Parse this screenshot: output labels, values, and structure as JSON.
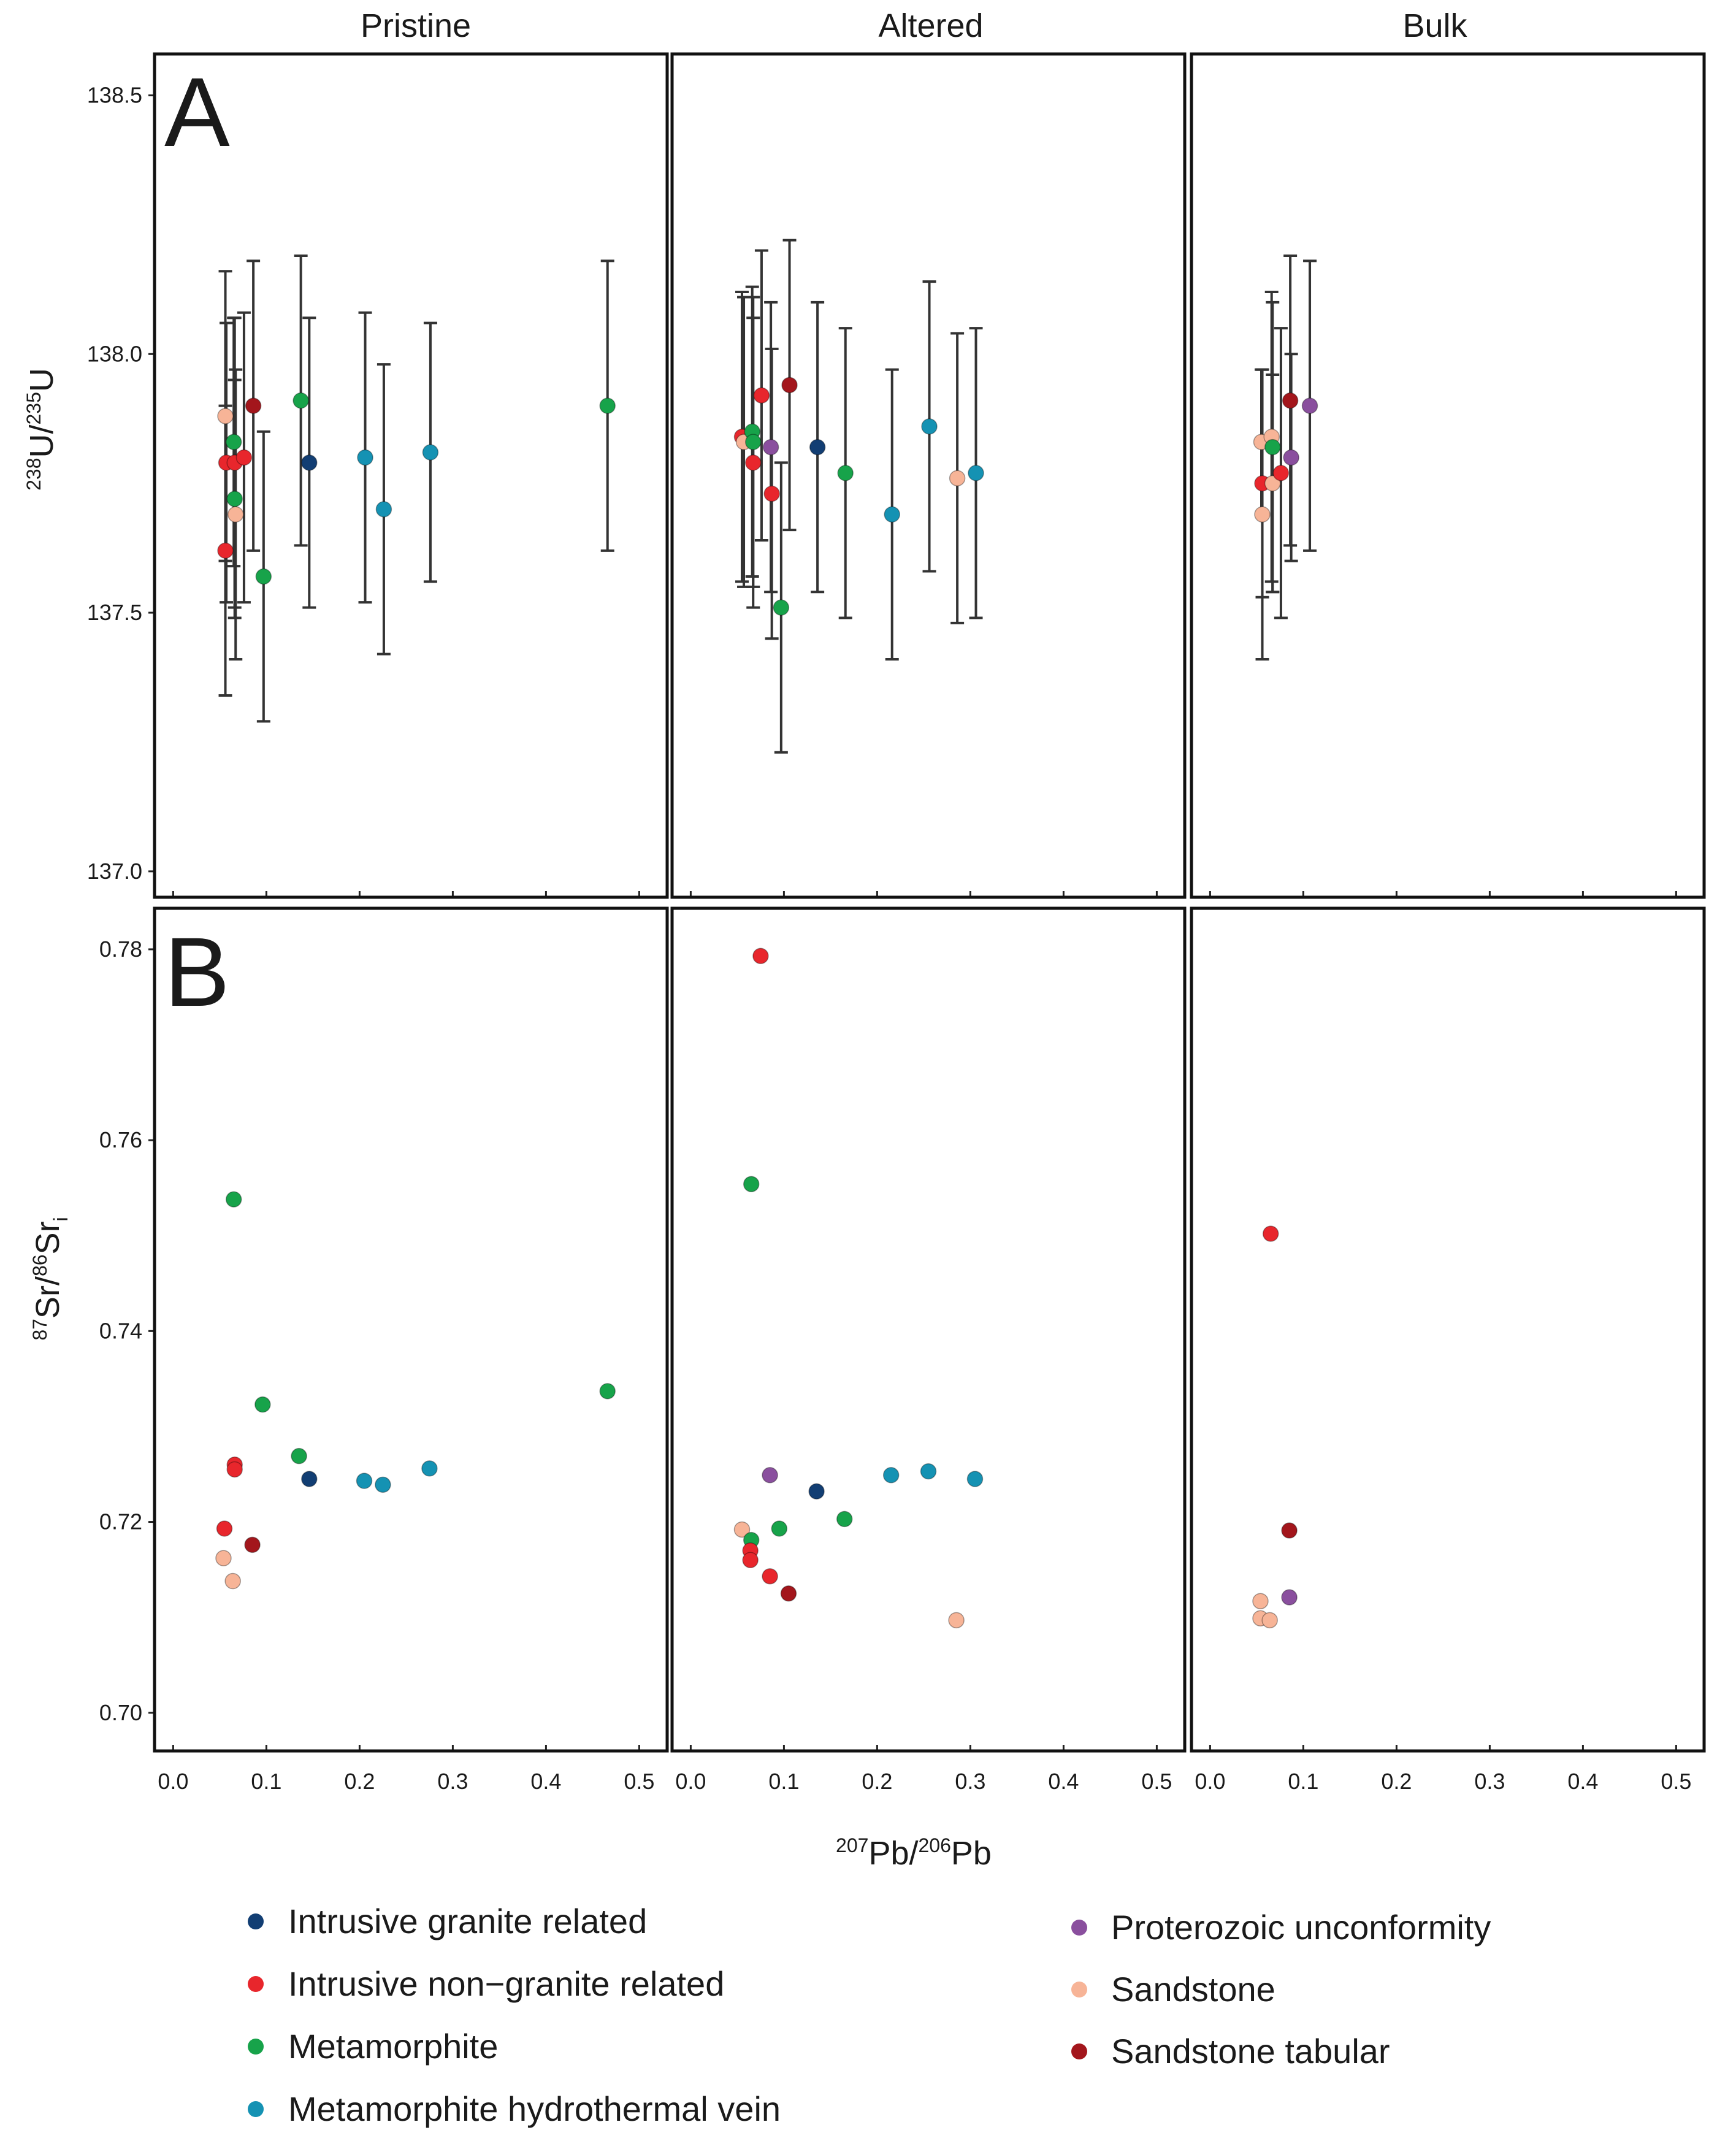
{
  "figure": {
    "column_titles": [
      "Pristine",
      "Altered",
      "Bulk"
    ],
    "panel_letters": [
      "A",
      "B"
    ],
    "xlabel": {
      "sup1": "207",
      "base1": "Pb/",
      "sup2": "206",
      "base2": "Pb"
    },
    "ylabel_A": {
      "sup1": "238",
      "base1": "U/",
      "sup2": "235",
      "base2": "U"
    },
    "ylabel_B": {
      "sup1": "87",
      "base1": "Sr/",
      "sup2": "86",
      "base2": "Sr",
      "sub": "i"
    }
  },
  "legend": {
    "left": [
      "Intrusive granite related",
      "Intrusive non−granite related",
      "Metamorphite",
      "Metamorphite hydrothermal vein"
    ],
    "right": [
      "Proterozoic unconformity",
      "Sandstone",
      "Sandstone tabular"
    ]
  },
  "chart_data": {
    "type": "scatter",
    "categories": {
      "Intrusive granite related": "#123e73",
      "Intrusive non−granite related": "#e8262c",
      "Metamorphite": "#17a34a",
      "Metamorphite hydrothermal vein": "#1592b3",
      "Proterozoic unconformity": "#8a4f9e",
      "Sandstone": "#f7b497",
      "Sandstone tabular": "#a3161c"
    },
    "xlim": [
      -0.02,
      0.53
    ],
    "xticks": [
      0.0,
      0.1,
      0.2,
      0.3,
      0.4,
      0.5
    ],
    "xtick_labels": [
      "0.0",
      "0.1",
      "0.2",
      "0.3",
      "0.4",
      "0.5"
    ],
    "panels": {
      "A": {
        "ylabel": "238U/235U",
        "ylim": [
          136.95,
          138.58
        ],
        "yticks": [
          137.0,
          137.5,
          138.0,
          138.5
        ],
        "ytick_labels": [
          "137.0",
          "137.5",
          "138.0",
          "138.5"
        ],
        "Pristine": [
          {
            "cat": "Sandstone",
            "x": 0.056,
            "y": 137.88,
            "err": 0.28
          },
          {
            "cat": "Intrusive non−granite related",
            "x": 0.057,
            "y": 137.79,
            "err": 0.27
          },
          {
            "cat": "Intrusive non−granite related",
            "x": 0.056,
            "y": 137.62,
            "err": 0.28
          },
          {
            "cat": "Metamorphite",
            "x": 0.065,
            "y": 137.83,
            "err": 0.24
          },
          {
            "cat": "Intrusive non−granite related",
            "x": 0.066,
            "y": 137.79,
            "err": 0.28
          },
          {
            "cat": "Metamorphite",
            "x": 0.066,
            "y": 137.72,
            "err": 0.23
          },
          {
            "cat": "Sandstone",
            "x": 0.067,
            "y": 137.69,
            "err": 0.28
          },
          {
            "cat": "Intrusive non−granite related",
            "x": 0.076,
            "y": 137.8,
            "err": 0.28
          },
          {
            "cat": "Sandstone tabular",
            "x": 0.086,
            "y": 137.9,
            "err": 0.28
          },
          {
            "cat": "Metamorphite",
            "x": 0.097,
            "y": 137.57,
            "err": 0.28
          },
          {
            "cat": "Metamorphite",
            "x": 0.137,
            "y": 137.91,
            "err": 0.28
          },
          {
            "cat": "Intrusive granite related",
            "x": 0.146,
            "y": 137.79,
            "err": 0.28
          },
          {
            "cat": "Metamorphite hydrothermal vein",
            "x": 0.206,
            "y": 137.8,
            "err": 0.28
          },
          {
            "cat": "Metamorphite hydrothermal vein",
            "x": 0.226,
            "y": 137.7,
            "err": 0.28
          },
          {
            "cat": "Metamorphite hydrothermal vein",
            "x": 0.276,
            "y": 137.81,
            "err": 0.25
          },
          {
            "cat": "Metamorphite",
            "x": 0.466,
            "y": 137.9,
            "err": 0.28
          }
        ],
        "Altered": [
          {
            "cat": "Intrusive non−granite related",
            "x": 0.055,
            "y": 137.84,
            "err": 0.28
          },
          {
            "cat": "Sandstone",
            "x": 0.057,
            "y": 137.83,
            "err": 0.28
          },
          {
            "cat": "Metamorphite",
            "x": 0.066,
            "y": 137.85,
            "err": 0.28
          },
          {
            "cat": "Metamorphite",
            "x": 0.067,
            "y": 137.83,
            "err": 0.28
          },
          {
            "cat": "Intrusive non−granite related",
            "x": 0.067,
            "y": 137.79,
            "err": 0.28
          },
          {
            "cat": "Intrusive non−granite related",
            "x": 0.076,
            "y": 137.92,
            "err": 0.28
          },
          {
            "cat": "Proterozoic unconformity",
            "x": 0.086,
            "y": 137.82,
            "err": 0.28
          },
          {
            "cat": "Intrusive non−granite related",
            "x": 0.087,
            "y": 137.73,
            "err": 0.28
          },
          {
            "cat": "Metamorphite",
            "x": 0.097,
            "y": 137.51,
            "err": 0.28
          },
          {
            "cat": "Sandstone tabular",
            "x": 0.106,
            "y": 137.94,
            "err": 0.28
          },
          {
            "cat": "Intrusive granite related",
            "x": 0.136,
            "y": 137.82,
            "err": 0.28
          },
          {
            "cat": "Metamorphite",
            "x": 0.166,
            "y": 137.77,
            "err": 0.28
          },
          {
            "cat": "Metamorphite hydrothermal vein",
            "x": 0.216,
            "y": 137.69,
            "err": 0.28
          },
          {
            "cat": "Metamorphite hydrothermal vein",
            "x": 0.256,
            "y": 137.86,
            "err": 0.28
          },
          {
            "cat": "Sandstone",
            "x": 0.286,
            "y": 137.76,
            "err": 0.28
          },
          {
            "cat": "Metamorphite hydrothermal vein",
            "x": 0.306,
            "y": 137.77,
            "err": 0.28
          }
        ],
        "Bulk": [
          {
            "cat": "Sandstone",
            "x": 0.055,
            "y": 137.83,
            "err": 0.14
          },
          {
            "cat": "Intrusive non−granite related",
            "x": 0.056,
            "y": 137.75,
            "err": 0.22
          },
          {
            "cat": "Sandstone",
            "x": 0.056,
            "y": 137.69,
            "err": 0.28
          },
          {
            "cat": "Sandstone",
            "x": 0.066,
            "y": 137.84,
            "err": 0.28
          },
          {
            "cat": "Metamorphite",
            "x": 0.067,
            "y": 137.82,
            "err": 0.28
          },
          {
            "cat": "Sandstone",
            "x": 0.067,
            "y": 137.75,
            "err": 0.21
          },
          {
            "cat": "Intrusive non−granite related",
            "x": 0.076,
            "y": 137.77,
            "err": 0.28
          },
          {
            "cat": "Sandstone tabular",
            "x": 0.086,
            "y": 137.91,
            "err": 0.28
          },
          {
            "cat": "Proterozoic unconformity",
            "x": 0.087,
            "y": 137.8,
            "err": 0.2
          },
          {
            "cat": "Proterozoic unconformity",
            "x": 0.107,
            "y": 137.9,
            "err": 0.28
          }
        ]
      },
      "B": {
        "ylabel": "87Sr/86Sri",
        "ylim": [
          0.696,
          0.7843
        ],
        "yticks": [
          0.7,
          0.72,
          0.74,
          0.76,
          0.78
        ],
        "ytick_labels": [
          "0.70",
          "0.72",
          "0.74",
          "0.76",
          "0.78"
        ],
        "Pristine": [
          {
            "cat": "Metamorphite",
            "x": 0.065,
            "y": 0.7538
          },
          {
            "cat": "Metamorphite",
            "x": 0.096,
            "y": 0.7323
          },
          {
            "cat": "Metamorphite",
            "x": 0.466,
            "y": 0.7337
          },
          {
            "cat": "Metamorphite",
            "x": 0.135,
            "y": 0.7269
          },
          {
            "cat": "Intrusive non−granite related",
            "x": 0.066,
            "y": 0.726
          },
          {
            "cat": "Intrusive non−granite related",
            "x": 0.066,
            "y": 0.7255
          },
          {
            "cat": "Intrusive granite related",
            "x": 0.146,
            "y": 0.7245
          },
          {
            "cat": "Metamorphite hydrothermal vein",
            "x": 0.205,
            "y": 0.7243
          },
          {
            "cat": "Metamorphite hydrothermal vein",
            "x": 0.225,
            "y": 0.7239
          },
          {
            "cat": "Metamorphite hydrothermal vein",
            "x": 0.275,
            "y": 0.7256
          },
          {
            "cat": "Intrusive non−granite related",
            "x": 0.055,
            "y": 0.7193
          },
          {
            "cat": "Sandstone tabular",
            "x": 0.085,
            "y": 0.7176
          },
          {
            "cat": "Sandstone",
            "x": 0.054,
            "y": 0.7162
          },
          {
            "cat": "Sandstone",
            "x": 0.064,
            "y": 0.7138
          }
        ],
        "Altered": [
          {
            "cat": "Intrusive non−granite related",
            "x": 0.075,
            "y": 0.7793
          },
          {
            "cat": "Metamorphite",
            "x": 0.065,
            "y": 0.7554
          },
          {
            "cat": "Proterozoic unconformity",
            "x": 0.085,
            "y": 0.7249
          },
          {
            "cat": "Intrusive granite related",
            "x": 0.135,
            "y": 0.7232
          },
          {
            "cat": "Metamorphite hydrothermal vein",
            "x": 0.215,
            "y": 0.7249
          },
          {
            "cat": "Metamorphite hydrothermal vein",
            "x": 0.255,
            "y": 0.7253
          },
          {
            "cat": "Metamorphite hydrothermal vein",
            "x": 0.305,
            "y": 0.7245
          },
          {
            "cat": "Metamorphite",
            "x": 0.165,
            "y": 0.7203
          },
          {
            "cat": "Sandstone",
            "x": 0.055,
            "y": 0.7192
          },
          {
            "cat": "Metamorphite",
            "x": 0.095,
            "y": 0.7193
          },
          {
            "cat": "Metamorphite",
            "x": 0.065,
            "y": 0.7181
          },
          {
            "cat": "Intrusive non−granite related",
            "x": 0.064,
            "y": 0.717
          },
          {
            "cat": "Intrusive non−granite related",
            "x": 0.064,
            "y": 0.716
          },
          {
            "cat": "Intrusive non−granite related",
            "x": 0.085,
            "y": 0.7143
          },
          {
            "cat": "Sandstone tabular",
            "x": 0.105,
            "y": 0.7125
          },
          {
            "cat": "Sandstone",
            "x": 0.285,
            "y": 0.7097
          }
        ],
        "Bulk": [
          {
            "cat": "Intrusive non−granite related",
            "x": 0.065,
            "y": 0.7502
          },
          {
            "cat": "Sandstone tabular",
            "x": 0.085,
            "y": 0.7191
          },
          {
            "cat": "Sandstone",
            "x": 0.054,
            "y": 0.7117
          },
          {
            "cat": "Proterozoic unconformity",
            "x": 0.085,
            "y": 0.7121
          },
          {
            "cat": "Sandstone",
            "x": 0.054,
            "y": 0.7099
          },
          {
            "cat": "Sandstone",
            "x": 0.064,
            "y": 0.7097
          }
        ]
      }
    }
  }
}
